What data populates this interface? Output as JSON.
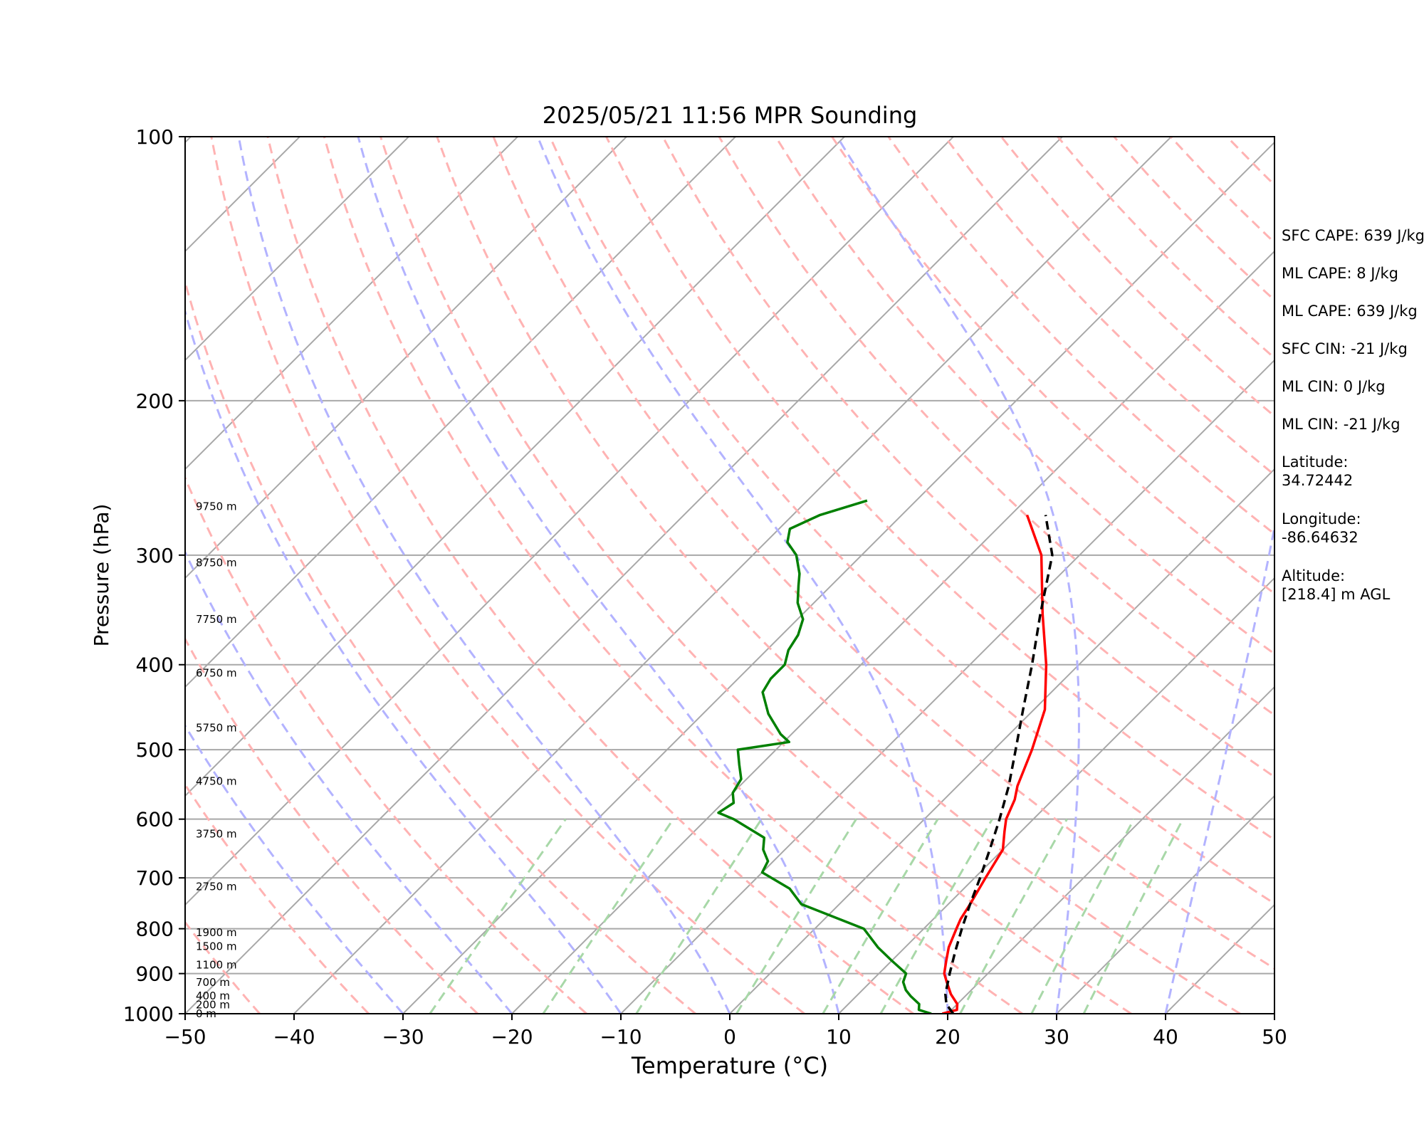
{
  "chart_data": {
    "type": "line",
    "subtype": "skew-t log-p sounding",
    "title": "2025/05/21 11:56 MPR Sounding",
    "xlabel": "Temperature (°C)",
    "ylabel": "Pressure (hPa)",
    "xlim": [
      -50,
      50
    ],
    "ylim": [
      1000,
      100
    ],
    "yscale": "log",
    "x_ticks": [
      "−50",
      "−40",
      "−30",
      "−20",
      "−10",
      "0",
      "10",
      "20",
      "30",
      "40",
      "50"
    ],
    "y_ticks": [
      {
        "p": 100,
        "label": "100"
      },
      {
        "p": 200,
        "label": "200"
      },
      {
        "p": 300,
        "label": "300"
      },
      {
        "p": 400,
        "label": "400"
      },
      {
        "p": 500,
        "label": "500"
      },
      {
        "p": 600,
        "label": "600"
      },
      {
        "p": 700,
        "label": "700"
      },
      {
        "p": 800,
        "label": "800"
      },
      {
        "p": 900,
        "label": "900"
      },
      {
        "p": 1000,
        "label": "1000"
      }
    ],
    "height_labels": [
      {
        "p": 1000,
        "label": "0 m"
      },
      {
        "p": 977,
        "label": "200 m"
      },
      {
        "p": 954,
        "label": "400 m"
      },
      {
        "p": 921,
        "label": "700 m"
      },
      {
        "p": 880,
        "label": "1100 m"
      },
      {
        "p": 838,
        "label": "1500 m"
      },
      {
        "p": 808,
        "label": "1900 m"
      },
      {
        "p": 716,
        "label": "2750 m"
      },
      {
        "p": 624,
        "label": "3750 m"
      },
      {
        "p": 543,
        "label": "4750 m"
      },
      {
        "p": 472,
        "label": "5750 m"
      },
      {
        "p": 409,
        "label": "6750 m"
      },
      {
        "p": 355,
        "label": "7750 m"
      },
      {
        "p": 306,
        "label": "8750 m"
      },
      {
        "p": 264,
        "label": "9750 m"
      }
    ],
    "series": [
      {
        "role": "temperature",
        "color": "#ff0000",
        "points": [
          [
            1000,
            19.5
          ],
          [
            990,
            20.5
          ],
          [
            975,
            20.0
          ],
          [
            950,
            18.5
          ],
          [
            920,
            17.0
          ],
          [
            900,
            16.0
          ],
          [
            870,
            15.0
          ],
          [
            840,
            14.0
          ],
          [
            800,
            13.0
          ],
          [
            780,
            12.5
          ],
          [
            750,
            12.0
          ],
          [
            700,
            11.0
          ],
          [
            650,
            10.0
          ],
          [
            620,
            8.5
          ],
          [
            600,
            7.5
          ],
          [
            570,
            6.5
          ],
          [
            550,
            5.5
          ],
          [
            500,
            3.5
          ],
          [
            450,
            1.0
          ],
          [
            400,
            -3.0
          ],
          [
            350,
            -8.0
          ],
          [
            300,
            -13.5
          ],
          [
            270,
            -18.5
          ]
        ]
      },
      {
        "role": "dewpoint",
        "color": "#008000",
        "points": [
          [
            1000,
            18.5
          ],
          [
            990,
            17.0
          ],
          [
            975,
            16.5
          ],
          [
            955,
            15.0
          ],
          [
            940,
            14.0
          ],
          [
            920,
            13.0
          ],
          [
            900,
            12.5
          ],
          [
            870,
            10.0
          ],
          [
            840,
            7.5
          ],
          [
            800,
            4.5
          ],
          [
            750,
            -3.5
          ],
          [
            720,
            -6.0
          ],
          [
            690,
            -10.0
          ],
          [
            670,
            -10.5
          ],
          [
            650,
            -12.0
          ],
          [
            630,
            -13.0
          ],
          [
            600,
            -17.5
          ],
          [
            590,
            -19.5
          ],
          [
            575,
            -19.0
          ],
          [
            560,
            -20.0
          ],
          [
            540,
            -20.5
          ],
          [
            520,
            -22.0
          ],
          [
            500,
            -23.5
          ],
          [
            490,
            -19.5
          ],
          [
            480,
            -21.0
          ],
          [
            455,
            -24.0
          ],
          [
            430,
            -26.5
          ],
          [
            415,
            -27.0
          ],
          [
            400,
            -27.0
          ],
          [
            385,
            -28.0
          ],
          [
            370,
            -28.5
          ],
          [
            355,
            -29.5
          ],
          [
            340,
            -31.5
          ],
          [
            325,
            -33.0
          ],
          [
            315,
            -34.0
          ],
          [
            300,
            -36.0
          ],
          [
            290,
            -38.0
          ],
          [
            280,
            -39.0
          ],
          [
            270,
            -37.5
          ],
          [
            260,
            -34.5
          ]
        ]
      },
      {
        "role": "parcel",
        "color": "#000000",
        "style": "dashed",
        "points": [
          [
            1000,
            20.5
          ],
          [
            975,
            19.0
          ],
          [
            950,
            18.0
          ],
          [
            900,
            16.5
          ],
          [
            850,
            15.0
          ],
          [
            800,
            13.5
          ],
          [
            750,
            12.0
          ],
          [
            700,
            10.5
          ],
          [
            650,
            8.8
          ],
          [
            600,
            6.9
          ],
          [
            550,
            4.7
          ],
          [
            500,
            2.0
          ],
          [
            450,
            -1.0
          ],
          [
            400,
            -4.3
          ],
          [
            350,
            -8.2
          ],
          [
            300,
            -12.5
          ],
          [
            270,
            -16.8
          ]
        ]
      }
    ],
    "reference_lines": {
      "isotherms_c": [
        -140,
        -130,
        -120,
        -110,
        -100,
        -90,
        -80,
        -70,
        -60,
        -50,
        -40,
        -30,
        -20,
        -10,
        0,
        10,
        20,
        30,
        40,
        50
      ],
      "dry_adiabats_theta_k": [
        210,
        220,
        230,
        240,
        250,
        260,
        270,
        280,
        290,
        300,
        310,
        320,
        330,
        340,
        350,
        360,
        370,
        380,
        390,
        400,
        410,
        420,
        430,
        440,
        450,
        460,
        470,
        480,
        490,
        500
      ],
      "moist_adiabat_start_c": [
        -30,
        -20,
        -10,
        0,
        10,
        20,
        30,
        40,
        50
      ],
      "mixing_ratios_gkg": [
        0.4,
        1,
        2,
        4,
        7,
        10,
        16,
        24,
        32
      ],
      "isobars_hpa": [
        100,
        200,
        300,
        400,
        500,
        600,
        700,
        800,
        900
      ]
    },
    "annotations": [
      {
        "key": "sfc_cape",
        "text": "SFC CAPE: 639 J/kg"
      },
      {
        "key": "ml_cape_1",
        "text": "ML CAPE: 8 J/kg"
      },
      {
        "key": "ml_cape_2",
        "text": "ML CAPE: 639 J/kg"
      },
      {
        "key": "sfc_cin",
        "text": "SFC CIN: -21 J/kg"
      },
      {
        "key": "ml_cin_1",
        "text": "ML CIN: 0 J/kg"
      },
      {
        "key": "ml_cin_2",
        "text": "ML CIN: -21 J/kg"
      },
      {
        "key": "latitude",
        "text": "Latitude:\n34.72442"
      },
      {
        "key": "longitude",
        "text": "Longitude:\n-86.64632"
      },
      {
        "key": "altitude",
        "text": "Altitude:\n[218.4] m AGL"
      }
    ],
    "colors": {
      "dry_adiabat": "#ffb3b3",
      "moist_adiabat": "#b3b3ff",
      "mixing_ratio": "#a8d8a8",
      "isotherm": "#a8a8a8",
      "isobar": "#a8a8a8"
    }
  }
}
